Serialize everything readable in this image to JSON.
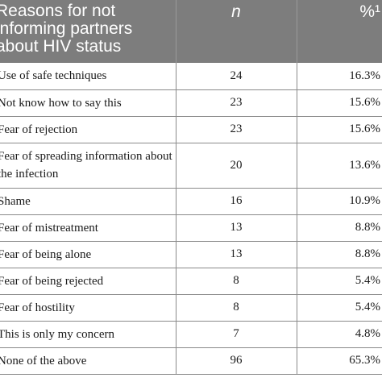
{
  "header": {
    "reason_label": "Reasons for not informing partners about HIV status",
    "n_label": "n",
    "pct_label": "%¹"
  },
  "rows": [
    {
      "reason": "Use of safe techniques",
      "n": "24",
      "pct": "16.3%"
    },
    {
      "reason": "Not know how to say this",
      "n": "23",
      "pct": "15.6%"
    },
    {
      "reason": "Fear of rejection",
      "n": "23",
      "pct": "15.6%"
    },
    {
      "reason": "Fear of spreading information about the infection",
      "n": "20",
      "pct": "13.6%"
    },
    {
      "reason": "Shame",
      "n": "16",
      "pct": "10.9%"
    },
    {
      "reason": "Fear of mistreatment",
      "n": "13",
      "pct": "8.8%"
    },
    {
      "reason": "Fear of being alone",
      "n": "13",
      "pct": "8.8%"
    },
    {
      "reason": "Fear of being rejected",
      "n": "8",
      "pct": "5.4%"
    },
    {
      "reason": "Fear of hostility",
      "n": "8",
      "pct": "5.4%"
    },
    {
      "reason": "This is only my concern",
      "n": "7",
      "pct": "4.8%"
    },
    {
      "reason": "None of the above",
      "n": "96",
      "pct": "65.3%"
    }
  ]
}
